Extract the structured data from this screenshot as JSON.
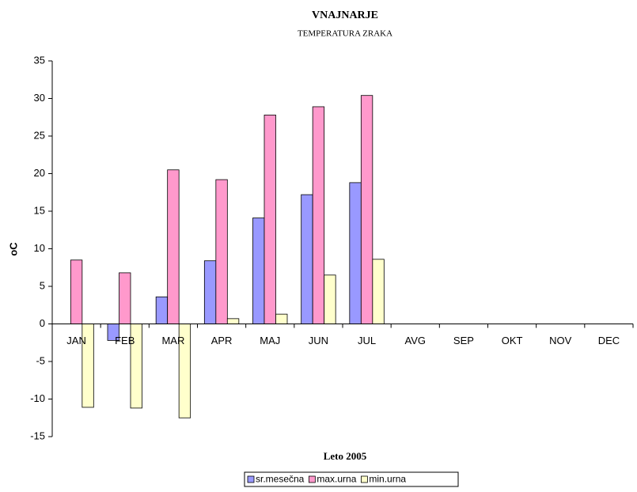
{
  "chart_data": {
    "type": "bar",
    "title": "VNAJNARJE",
    "subtitle": "TEMPERATURA ZRAKA",
    "x_label": "Leto 2005",
    "y_label": "oC",
    "categories": [
      "JAN",
      "FEB",
      "MAR",
      "APR",
      "MAJ",
      "JUN",
      "JUL",
      "AVG",
      "SEP",
      "OKT",
      "NOV",
      "DEC"
    ],
    "series": [
      {
        "name": "sr.mesečna",
        "color": "#9999ff",
        "values": [
          0,
          -2.2,
          3.6,
          8.4,
          14.1,
          17.2,
          18.8,
          null,
          null,
          null,
          null,
          null
        ]
      },
      {
        "name": "max.urna",
        "color": "#ff99cc",
        "values": [
          8.5,
          6.8,
          20.5,
          19.2,
          27.8,
          28.9,
          30.4,
          null,
          null,
          null,
          null,
          null
        ]
      },
      {
        "name": "min.urna",
        "color": "#ffffcc",
        "values": [
          -11.1,
          -11.2,
          -12.5,
          0.7,
          1.3,
          6.5,
          8.6,
          null,
          null,
          null,
          null,
          null
        ]
      }
    ],
    "ylim": [
      -15,
      35
    ],
    "yticks": [
      -15,
      -10,
      -5,
      0,
      5,
      10,
      15,
      20,
      25,
      30,
      35
    ],
    "grid": false,
    "legend": "bottom"
  }
}
